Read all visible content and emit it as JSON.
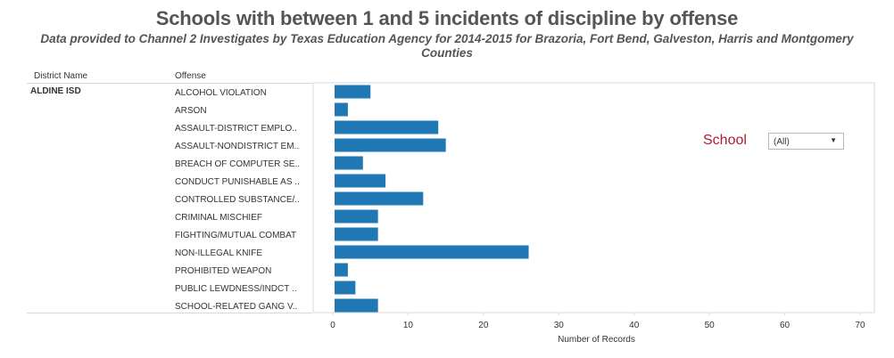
{
  "title": "Schools with between 1 and 5 incidents of discipline by offense",
  "subtitle": "Data provided to Channel 2 Investigates by Texas Education Agency for 2014-2015 for Brazoria, Fort Bend, Galveston, Harris and Montgomery Counties",
  "headers": {
    "district": "District Name",
    "offense": "Offense"
  },
  "district": "ALDINE ISD",
  "filter": {
    "label": "School",
    "value": "(All)"
  },
  "colors": {
    "bar": "#1f77b4",
    "filter_label": "#b01c2e"
  },
  "chart_data": {
    "type": "bar",
    "orientation": "horizontal",
    "categories": [
      "ALCOHOL VIOLATION",
      "ARSON",
      "ASSAULT-DISTRICT EMPLO..",
      "ASSAULT-NONDISTRICT EM..",
      "BREACH OF COMPUTER SE..",
      "CONDUCT PUNISHABLE AS ..",
      "CONTROLLED SUBSTANCE/..",
      "CRIMINAL MISCHIEF",
      "FIGHTING/MUTUAL COMBAT",
      "NON-ILLEGAL KNIFE",
      "PROHIBITED WEAPON",
      "PUBLIC LEWDNESS/INDCT ..",
      "SCHOOL-RELATED GANG V.."
    ],
    "values": [
      5,
      2,
      14,
      15,
      4,
      7,
      12,
      6,
      6,
      26,
      2,
      3,
      6
    ],
    "xlabel": "Number of Records",
    "xlim": [
      0,
      70
    ],
    "xticks": [
      0,
      10,
      20,
      30,
      40,
      50,
      60,
      70
    ],
    "grid": false
  }
}
